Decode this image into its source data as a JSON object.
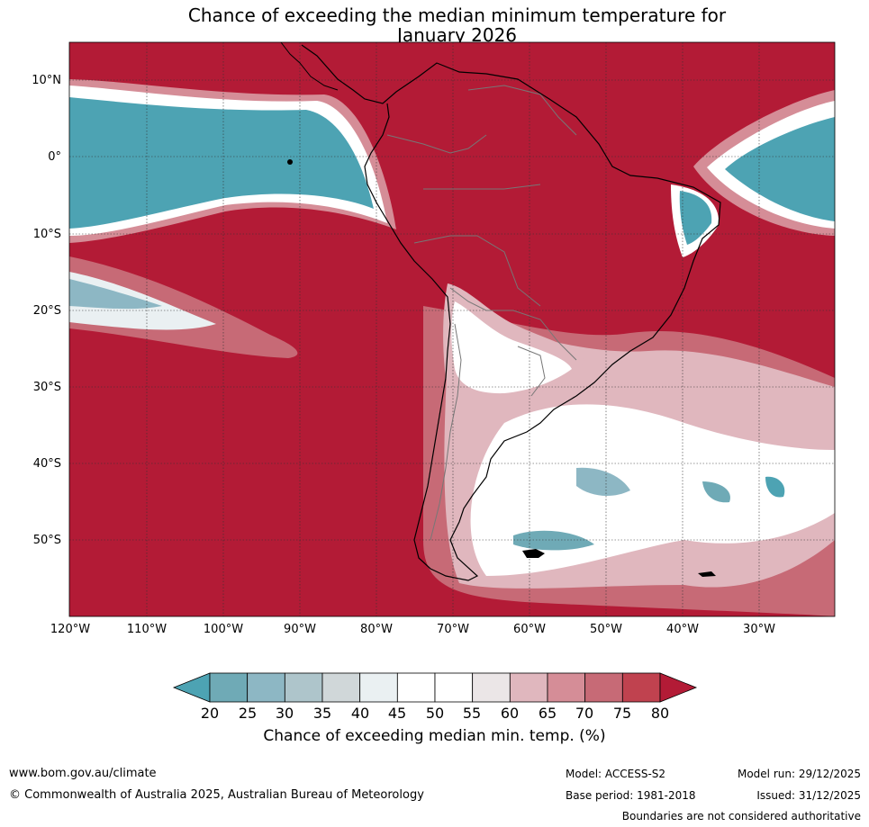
{
  "title_line1": "Chance of exceeding the median minimum temperature for",
  "title_line2": "January 2026",
  "lat_labels": [
    "10°N",
    "0°",
    "10°S",
    "20°S",
    "30°S",
    "40°S",
    "50°S"
  ],
  "lon_labels": [
    "120°W",
    "110°W",
    "100°W",
    "90°W",
    "80°W",
    "70°W",
    "60°W",
    "50°W",
    "40°W",
    "30°W"
  ],
  "colorbar": {
    "ticks": [
      "20",
      "25",
      "30",
      "35",
      "40",
      "45",
      "50",
      "55",
      "60",
      "65",
      "70",
      "75",
      "80"
    ],
    "label": "Chance of exceeding median min. temp. (%)",
    "colors": [
      "#4da3b3",
      "#6faab6",
      "#8db7c4",
      "#aec5cb",
      "#d0d7d9",
      "#eaf0f2",
      "#ffffff",
      "#ffffff",
      "#ebe6e7",
      "#e0b7be",
      "#d58d97",
      "#c76a76",
      "#c0424f",
      "#b31b36"
    ]
  },
  "footer": {
    "website": "www.bom.gov.au/climate",
    "copyright": "© Commonwealth of Australia 2025, Australian Bureau of Meteorology",
    "model": "Model: ACCESS-S2",
    "base_period": "Base period: 1981-2018",
    "model_run": "Model run: 29/12/2025",
    "issued": "Issued: 31/12/2025",
    "disclaimer": "Boundaries are not considered authoritative"
  }
}
